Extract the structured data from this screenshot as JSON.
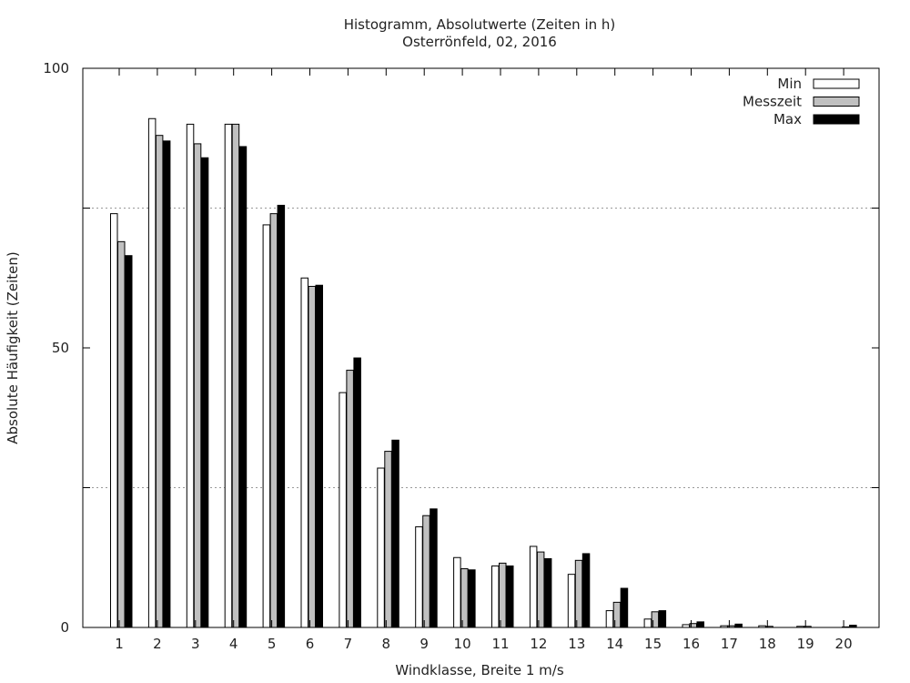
{
  "chart_data": {
    "type": "bar",
    "title": "Histogramm, Absolutwerte (Zeiten in h)",
    "subtitle": "Osterrönfeld, 02, 2016",
    "xlabel": "Windklasse, Breite 1 m/s",
    "ylabel": "Absolute Häufigkeit (Zeiten)",
    "ylim": [
      0,
      100
    ],
    "yticks": [
      "0",
      "50",
      "100"
    ],
    "grid": "dotted horizontal at 25 and 75",
    "legend_position": "top-right",
    "categories": [
      "1",
      "2",
      "3",
      "4",
      "5",
      "6",
      "7",
      "8",
      "9",
      "10",
      "11",
      "12",
      "13",
      "14",
      "15",
      "16",
      "17",
      "18",
      "19",
      "20"
    ],
    "series": [
      {
        "name": "Min",
        "color": "#ffffff",
        "values": [
          74,
          91,
          90,
          90,
          72,
          62.5,
          42,
          28.5,
          18,
          12.5,
          11,
          14.5,
          9.5,
          3,
          1.5,
          0.5,
          0.3,
          0.3,
          0.2,
          0
        ]
      },
      {
        "name": "Messzeit",
        "color": "#c0c0c0",
        "values": [
          69,
          88,
          86.5,
          90,
          74,
          61,
          46,
          31.5,
          20,
          10.5,
          11.5,
          13.5,
          12,
          4.5,
          2.8,
          0.7,
          0.3,
          0.2,
          0.2,
          0.1
        ]
      },
      {
        "name": "Max",
        "color": "#000000",
        "values": [
          66.5,
          87,
          84,
          86,
          75.5,
          61.2,
          48.2,
          33.5,
          21.2,
          10.3,
          11,
          12.3,
          13.2,
          7,
          3,
          1,
          0.6,
          0,
          0,
          0.4
        ]
      }
    ]
  }
}
